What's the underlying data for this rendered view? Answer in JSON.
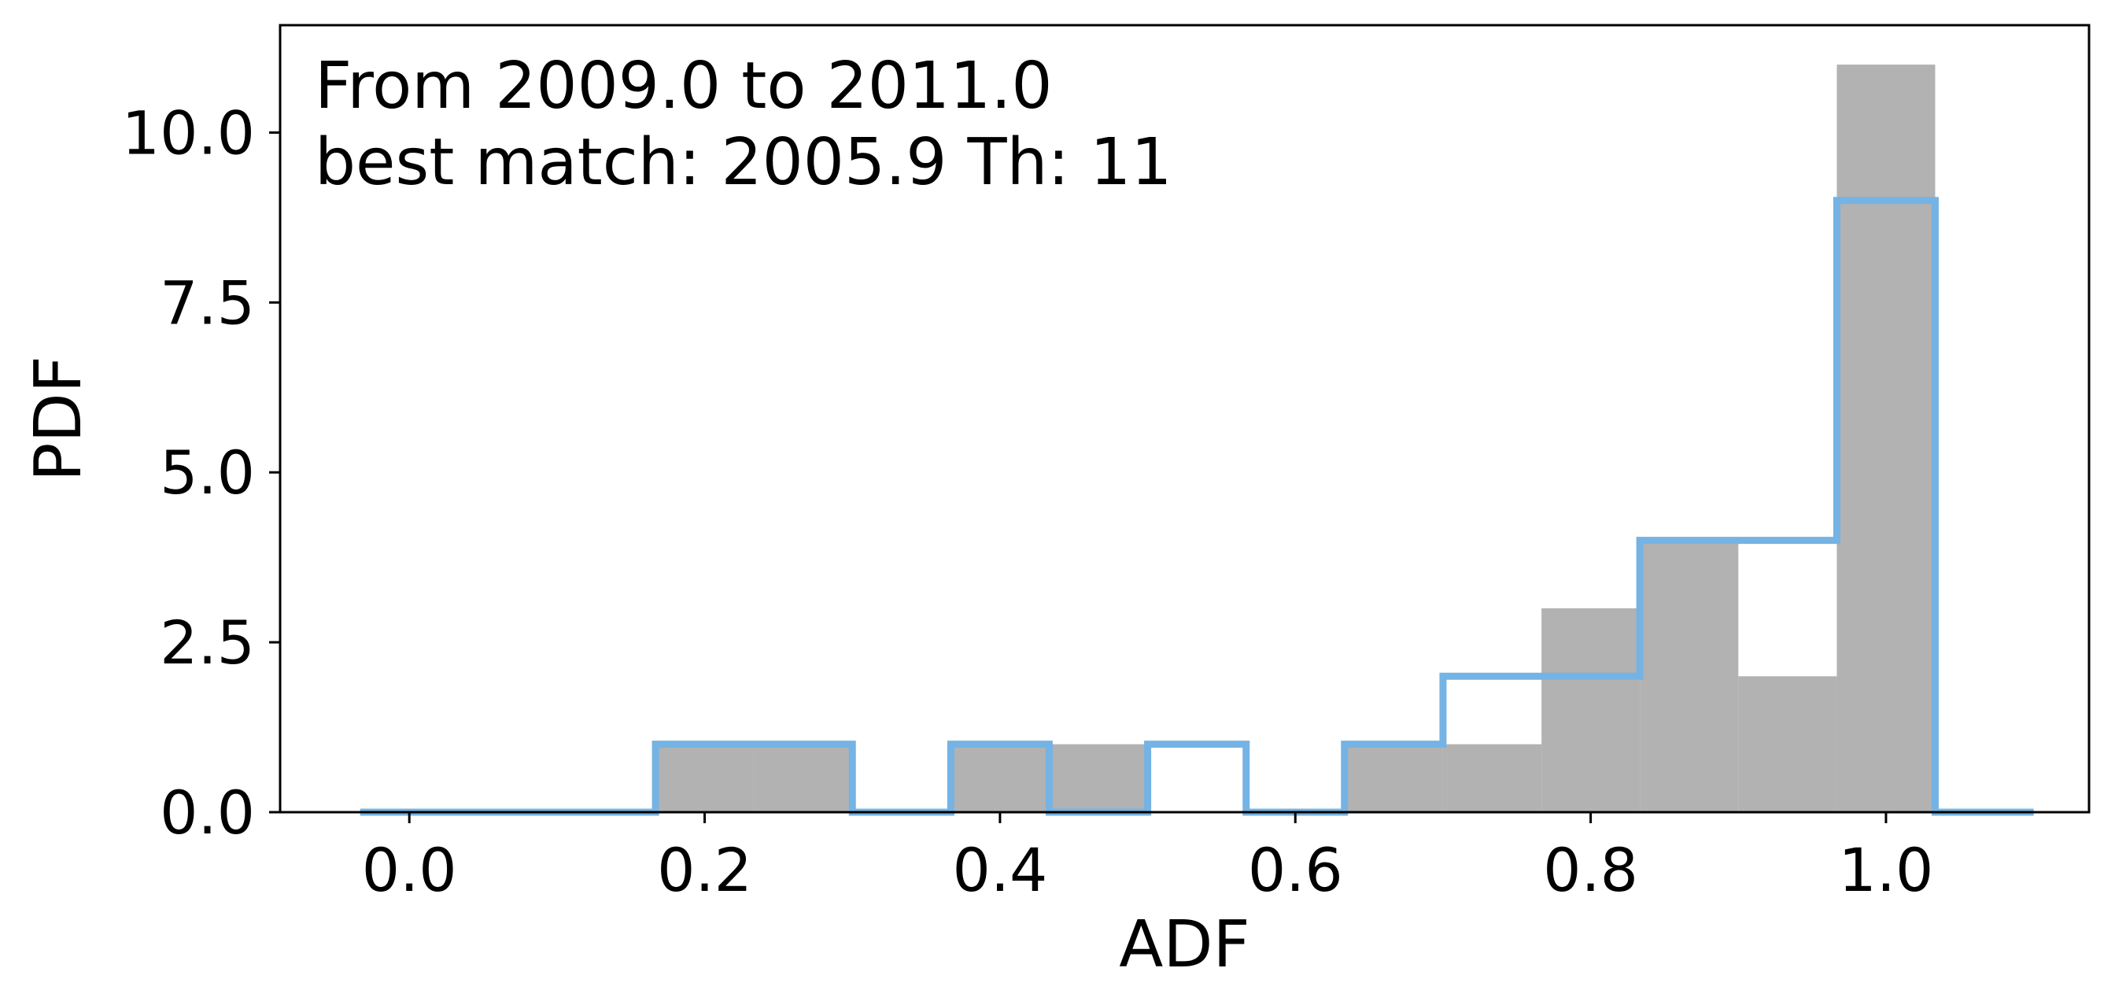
{
  "chart_data": {
    "type": "bar",
    "xlabel": "ADF",
    "ylabel": "PDF",
    "xlim": [
      -0.0875,
      1.1375
    ],
    "ylim": [
      0,
      11.58
    ],
    "x_ticks": [
      "0.0",
      "0.2",
      "0.4",
      "0.6",
      "0.8",
      "1.0"
    ],
    "x_tick_values": [
      0.0,
      0.2,
      0.4,
      0.6,
      0.8,
      1.0
    ],
    "y_ticks": [
      "0.0",
      "2.5",
      "5.0",
      "7.5",
      "10.0"
    ],
    "y_tick_values": [
      0.0,
      2.5,
      5.0,
      7.5,
      10.0
    ],
    "annotations": [
      "From 2009.0 to 2011.0",
      "best match: 2005.9  Th: 11"
    ],
    "bin_edges": [
      -0.0333,
      0.0333,
      0.1,
      0.1667,
      0.2333,
      0.3,
      0.3667,
      0.4333,
      0.5,
      0.5667,
      0.6333,
      0.7,
      0.7667,
      0.8333,
      0.9,
      0.9667,
      1.0333,
      1.1
    ],
    "series": [
      {
        "kind": "filled",
        "color": "#b2b2b2",
        "values": [
          0,
          0,
          0,
          1,
          1,
          0,
          1,
          1,
          0,
          0,
          1,
          1,
          3,
          4,
          2,
          11,
          0
        ]
      },
      {
        "kind": "step",
        "color": "#74b3e4",
        "values": [
          0,
          0,
          0,
          1,
          1,
          0,
          1,
          0,
          1,
          0,
          1,
          2,
          2,
          4,
          4,
          9,
          0
        ]
      }
    ]
  }
}
